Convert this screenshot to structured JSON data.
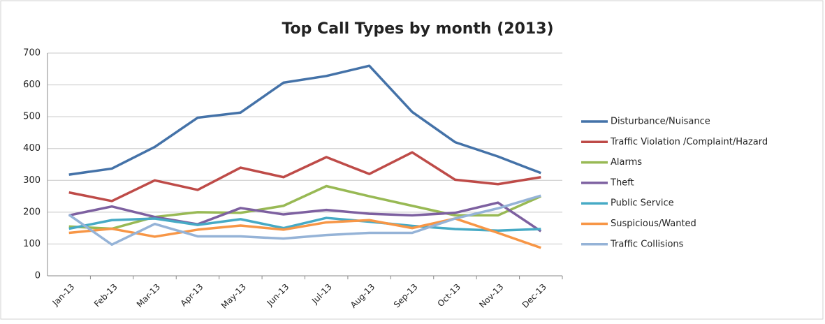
{
  "chart_data": {
    "type": "line",
    "title": "Top Call Types by month (2013)",
    "categories": [
      "Jan-13",
      "Feb-13",
      "Mar-13",
      "Apr-13",
      "May-13",
      "Jun-13",
      "Jul-13",
      "Aug-13",
      "Sep-13",
      "Oct-13",
      "Nov-13",
      "Dec-13"
    ],
    "ylim": [
      0,
      700
    ],
    "yticks": [
      0,
      100,
      200,
      300,
      400,
      500,
      600,
      700
    ],
    "grid": true,
    "legend": "right",
    "series": [
      {
        "name": "Disturbance/Nuisance",
        "color": "#4472a8",
        "values": [
          318,
          337,
          405,
          497,
          513,
          607,
          628,
          660,
          515,
          420,
          375,
          323
        ]
      },
      {
        "name": "Traffic Violation /Complaint/Hazard",
        "color": "#be4b48",
        "values": [
          262,
          235,
          300,
          270,
          340,
          310,
          373,
          320,
          388,
          302,
          288,
          310
        ]
      },
      {
        "name": "Alarms",
        "color": "#98b954",
        "values": [
          155,
          148,
          185,
          200,
          198,
          220,
          282,
          250,
          220,
          190,
          190,
          250
        ]
      },
      {
        "name": "Theft",
        "color": "#7d60a0",
        "values": [
          190,
          218,
          185,
          162,
          213,
          193,
          207,
          195,
          190,
          198,
          230,
          140
        ]
      },
      {
        "name": "Public Service",
        "color": "#46aac5",
        "values": [
          148,
          175,
          180,
          160,
          178,
          150,
          182,
          170,
          157,
          147,
          142,
          147
        ]
      },
      {
        "name": "Suspicious/Wanted",
        "color": "#f79646",
        "values": [
          135,
          148,
          123,
          145,
          158,
          145,
          168,
          175,
          150,
          180,
          135,
          88
        ]
      },
      {
        "name": "Traffic Collisions",
        "color": "#95b3d7",
        "values": [
          192,
          98,
          163,
          124,
          124,
          117,
          128,
          135,
          135,
          180,
          212,
          252
        ]
      }
    ]
  }
}
